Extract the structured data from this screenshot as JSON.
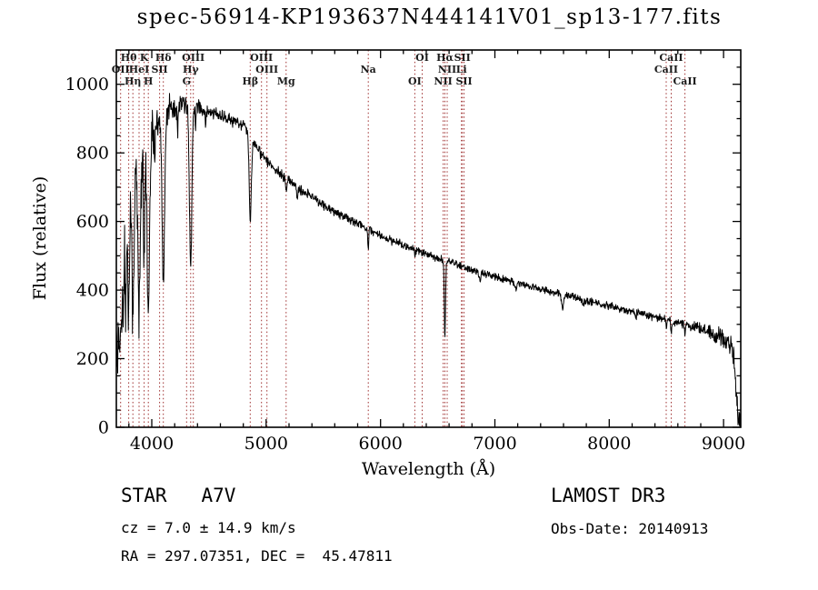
{
  "title": "spec-56914-KP193637N444141V01_sp13-177.fits",
  "annotations": {
    "class_label": "STAR   A7V",
    "survey": "LAMOST DR3",
    "cz": "cz = 7.0 ± 14.9 km/s",
    "obs_date": "Obs-Date: 20140913",
    "coords": "RA = 297.07351, DEC =  45.47811"
  },
  "chart_data": {
    "type": "line",
    "title": "spec-56914-KP193637N444141V01_sp13-177.fits",
    "xlabel": "Wavelength (Å)",
    "ylabel": "Flux (relative)",
    "xlim": [
      3690,
      9150
    ],
    "ylim": [
      0,
      1100
    ],
    "xticks": [
      4000,
      5000,
      6000,
      7000,
      8000,
      9000
    ],
    "yticks": [
      0,
      200,
      400,
      600,
      800,
      1000
    ],
    "x_minor_step": 200,
    "y_minor_step": 50,
    "grid": false,
    "legend": "none",
    "line_color": "#000000",
    "marker_line_color": "#9e2f2f",
    "marker_label_color": "#1b1b1b",
    "sample_step": 3,
    "continuum": [
      [
        3690,
        340
      ],
      [
        3720,
        520
      ],
      [
        3760,
        620
      ],
      [
        3800,
        680
      ],
      [
        3850,
        720
      ],
      [
        3900,
        765
      ],
      [
        3950,
        805
      ],
      [
        4000,
        855
      ],
      [
        4060,
        890
      ],
      [
        4150,
        925
      ],
      [
        4250,
        935
      ],
      [
        4350,
        935
      ],
      [
        4450,
        928
      ],
      [
        4550,
        915
      ],
      [
        4650,
        900
      ],
      [
        4750,
        888
      ],
      [
        4820,
        878
      ],
      [
        4900,
        820
      ],
      [
        5000,
        778
      ],
      [
        5100,
        745
      ],
      [
        5200,
        716
      ],
      [
        5300,
        692
      ],
      [
        5400,
        670
      ],
      [
        5500,
        649
      ],
      [
        5600,
        629
      ],
      [
        5700,
        610
      ],
      [
        5800,
        592
      ],
      [
        5900,
        576
      ],
      [
        6000,
        559
      ],
      [
        6100,
        544
      ],
      [
        6200,
        531
      ],
      [
        6300,
        518
      ],
      [
        6400,
        506
      ],
      [
        6500,
        494
      ],
      [
        6600,
        483
      ],
      [
        6700,
        471
      ],
      [
        6800,
        459
      ],
      [
        6900,
        449
      ],
      [
        7000,
        439
      ],
      [
        7200,
        420
      ],
      [
        7400,
        403
      ],
      [
        7600,
        386
      ],
      [
        7800,
        369
      ],
      [
        8000,
        353
      ],
      [
        8200,
        337
      ],
      [
        8400,
        321
      ],
      [
        8600,
        305
      ],
      [
        8800,
        289
      ],
      [
        8950,
        273
      ],
      [
        9040,
        252
      ],
      [
        9085,
        215
      ],
      [
        9110,
        95
      ],
      [
        9130,
        8
      ]
    ],
    "absorption_lines": [
      {
        "c": 3697,
        "d": 0.35,
        "s": 4
      },
      {
        "c": 3704,
        "d": 0.38,
        "s": 4.5
      },
      {
        "c": 3712,
        "d": 0.4,
        "s": 4.5
      },
      {
        "c": 3722,
        "d": 0.43,
        "s": 5
      },
      {
        "c": 3734,
        "d": 0.46,
        "s": 5.5
      },
      {
        "c": 3750,
        "d": 0.48,
        "s": 6
      },
      {
        "c": 3771,
        "d": 0.5,
        "s": 6.5
      },
      {
        "c": 3798,
        "d": 0.52,
        "s": 7.5
      },
      {
        "c": 3835,
        "d": 0.55,
        "s": 8.5
      },
      {
        "c": 3889,
        "d": 0.57,
        "s": 9
      },
      {
        "c": 3933,
        "d": 0.36,
        "s": 5.5
      },
      {
        "c": 3970,
        "d": 0.6,
        "s": 10
      },
      {
        "c": 4026,
        "d": 0.1,
        "s": 4
      },
      {
        "c": 4101,
        "d": 0.54,
        "s": 10.5
      },
      {
        "c": 4226,
        "d": 0.08,
        "s": 3.5
      },
      {
        "c": 4340,
        "d": 0.5,
        "s": 10.5
      },
      {
        "c": 4383,
        "d": 0.06,
        "s": 3.5
      },
      {
        "c": 4471,
        "d": 0.05,
        "s": 3.5
      },
      {
        "c": 4861,
        "d": 0.28,
        "s": 9.5
      },
      {
        "c": 5175,
        "d": 0.05,
        "s": 5
      },
      {
        "c": 5270,
        "d": 0.05,
        "s": 4
      },
      {
        "c": 5893,
        "d": 0.12,
        "s": 3.5
      },
      {
        "c": 6302,
        "d": 0.04,
        "s": 3
      },
      {
        "c": 6563,
        "d": 0.46,
        "s": 5.5
      },
      {
        "c": 6870,
        "d": 0.06,
        "s": 6
      },
      {
        "c": 7186,
        "d": 0.04,
        "s": 8
      },
      {
        "c": 7594,
        "d": 0.1,
        "s": 9
      },
      {
        "c": 7774,
        "d": 0.05,
        "s": 5
      },
      {
        "c": 8230,
        "d": 0.04,
        "s": 8
      },
      {
        "c": 8498,
        "d": 0.08,
        "s": 4
      },
      {
        "c": 8542,
        "d": 0.11,
        "s": 4
      },
      {
        "c": 8662,
        "d": 0.1,
        "s": 4
      },
      {
        "c": 8920,
        "d": 0.06,
        "s": 10
      },
      {
        "c": 9015,
        "d": 0.08,
        "s": 9
      }
    ],
    "noise_profile": [
      [
        3690,
        85
      ],
      [
        3800,
        70
      ],
      [
        3950,
        55
      ],
      [
        4100,
        34
      ],
      [
        4300,
        20
      ],
      [
        4500,
        13
      ],
      [
        4800,
        12
      ],
      [
        5200,
        11
      ],
      [
        5800,
        9
      ],
      [
        6500,
        8
      ],
      [
        7200,
        7.5
      ],
      [
        8000,
        8
      ],
      [
        8600,
        9
      ],
      [
        8900,
        14
      ],
      [
        9050,
        22
      ],
      [
        9130,
        26
      ]
    ],
    "spectral_markers": [
      {
        "label": "OII",
        "wl": 3727,
        "row": 2
      },
      {
        "label": "Hθ",
        "wl": 3798,
        "row": 1
      },
      {
        "label": "Hη",
        "wl": 3835,
        "row": 3
      },
      {
        "label": "HeI",
        "wl": 3889,
        "row": 2
      },
      {
        "label": "K",
        "wl": 3933,
        "row": 1
      },
      {
        "label": "H",
        "wl": 3970,
        "row": 3
      },
      {
        "label": "SII",
        "wl": 4068,
        "row": 2
      },
      {
        "label": "Hδ",
        "wl": 4101,
        "row": 1
      },
      {
        "label": "G",
        "wl": 4304,
        "row": 3
      },
      {
        "label": "Hγ",
        "wl": 4340,
        "row": 2
      },
      {
        "label": "OIII",
        "wl": 4363,
        "row": 1
      },
      {
        "label": "Hβ",
        "wl": 4861,
        "row": 3
      },
      {
        "label": "OIII",
        "wl": 4959,
        "row": 1
      },
      {
        "label": "OIII",
        "wl": 5007,
        "row": 2
      },
      {
        "label": "Mg",
        "wl": 5175,
        "row": 3
      },
      {
        "label": "Na",
        "wl": 5893,
        "row": 2
      },
      {
        "label": "OI",
        "wl": 6300,
        "row": 3
      },
      {
        "label": "OI",
        "wl": 6364,
        "row": 1
      },
      {
        "label": "NII",
        "wl": 6548,
        "row": 3
      },
      {
        "label": "Hα",
        "wl": 6563,
        "row": 1
      },
      {
        "label": "NII",
        "wl": 6583,
        "row": 2
      },
      {
        "label": "Li",
        "wl": 6708,
        "row": 2
      },
      {
        "label": "SII",
        "wl": 6716,
        "row": 1
      },
      {
        "label": "SII",
        "wl": 6731,
        "row": 3
      },
      {
        "label": "CaII",
        "wl": 8498,
        "row": 2
      },
      {
        "label": "CaII",
        "wl": 8542,
        "row": 1
      },
      {
        "label": "CaII",
        "wl": 8662,
        "row": 3
      }
    ]
  }
}
